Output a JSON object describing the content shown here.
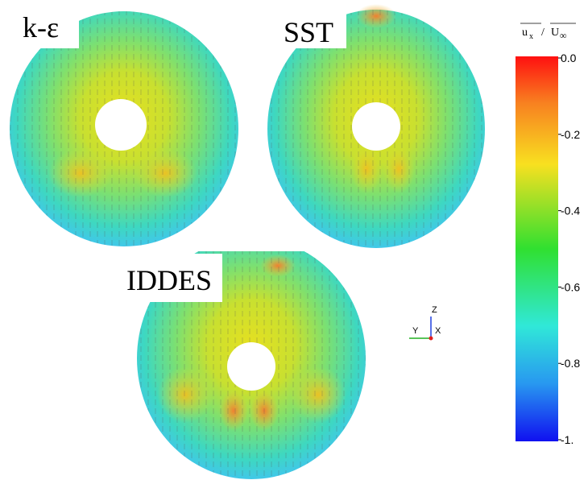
{
  "panels": [
    {
      "label": "k-ε"
    },
    {
      "label": "SST"
    },
    {
      "label": "IDDES"
    }
  ],
  "colorbar": {
    "title": {
      "numerator": "u",
      "numerator_sub": "x",
      "denominator": "U",
      "denominator_sub": "∞"
    },
    "range": [
      -1,
      0
    ],
    "ticks": [
      {
        "value": 0,
        "label": "0.0"
      },
      {
        "value": -0.2,
        "label": "-0.2"
      },
      {
        "value": -0.4,
        "label": "-0.4"
      },
      {
        "value": -0.6,
        "label": "-0.6"
      },
      {
        "value": -0.8,
        "label": "-0.8"
      },
      {
        "value": -1,
        "label": "-1."
      }
    ]
  },
  "axes_triad": {
    "z": "Z",
    "y": "Y",
    "x": "X"
  }
}
